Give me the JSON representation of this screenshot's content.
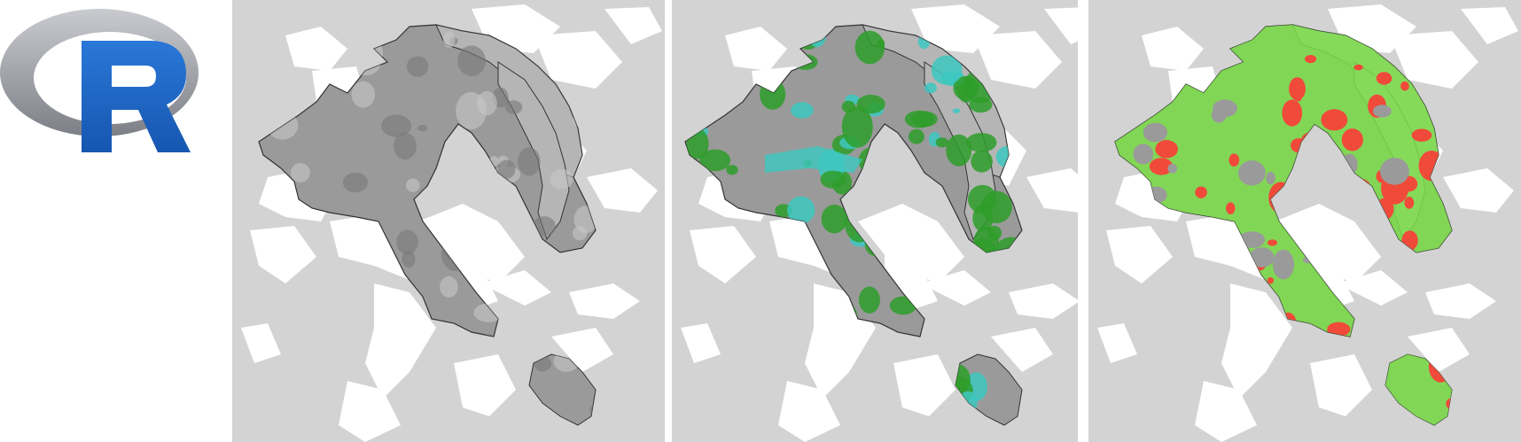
{
  "logo": {
    "letter": "R",
    "name": "R-logo"
  },
  "colors": {
    "background": "#d3d3d3",
    "land_white": "#ffffff",
    "range_gray": "#9a9a9a",
    "range_outline": "#333333",
    "green": "#2e9e2a",
    "cyan": "#3cc8c0",
    "bright_green": "#7ee04a",
    "red": "#f04a3a",
    "logo_blue": "#1f66c4",
    "logo_ring": "#9a9ca3"
  },
  "panels": [
    {
      "name": "range-grayscale",
      "style": "grayscale"
    },
    {
      "name": "range-green-cyan",
      "style": "green-cyan"
    },
    {
      "name": "range-green-red",
      "style": "green-red"
    }
  ]
}
